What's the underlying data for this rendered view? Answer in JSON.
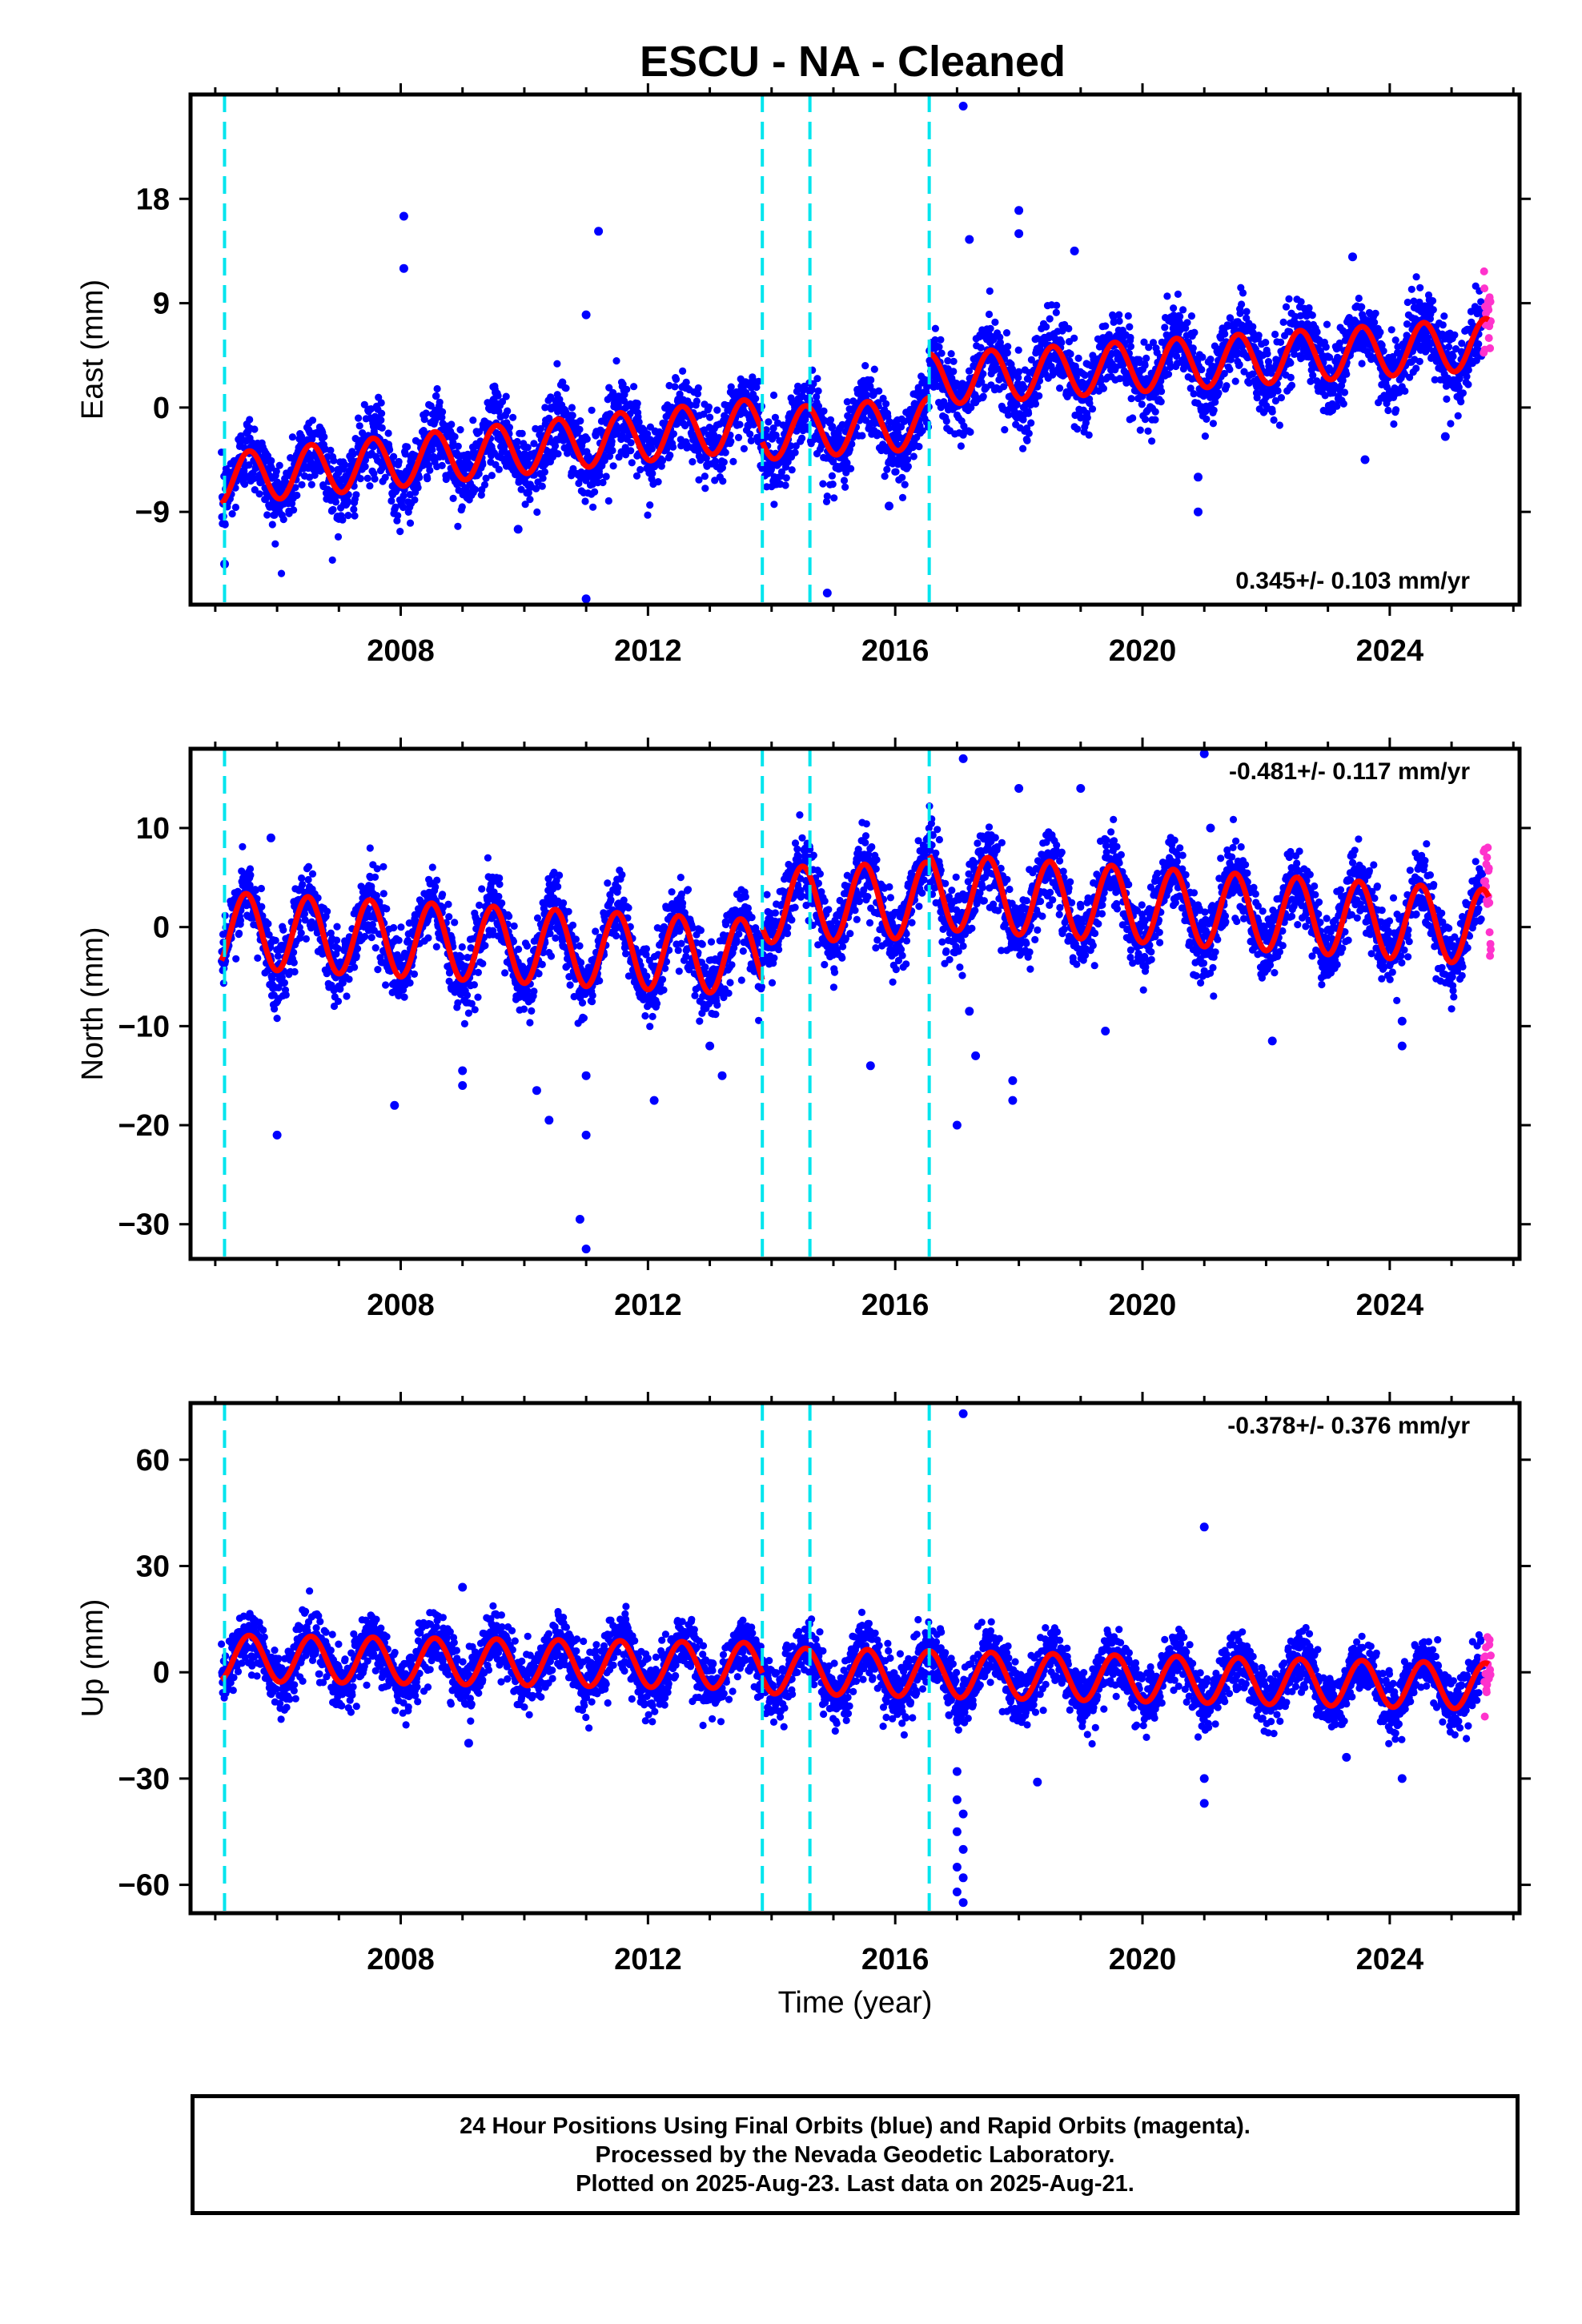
{
  "title": "ESCU  - NA - Cleaned",
  "xlabel": "Time (year)",
  "footer": {
    "line1": "24 Hour Positions Using Final Orbits (blue) and Rapid Orbits (magenta).",
    "line2": "Processed by the Nevada Geodetic Laboratory.",
    "line3": "Plotted on 2025-Aug-23. Last data on 2025-Aug-21."
  },
  "colors": {
    "final": "#0000ff",
    "rapid": "#ff33cc",
    "model": "#ff0000",
    "offsets": "#00e5ee",
    "frame": "#000000"
  },
  "chart_data": [
    {
      "type": "scatter",
      "component": "east",
      "ylabel": "East (mm)",
      "rate_text": "0.345+/- 0.103 mm/yr",
      "rate_position": "bottom-right",
      "xlim": [
        2004.6,
        2026.1
      ],
      "ylim": [
        -17,
        27
      ],
      "xticks": [
        2008,
        2012,
        2016,
        2020,
        2024
      ],
      "yticks": [
        -9,
        0,
        9,
        18
      ],
      "offsets": [
        2005.15,
        2013.85,
        2014.62,
        2016.55
      ],
      "data_span": [
        2005.1,
        2025.6
      ],
      "rapid_span": [
        2025.52,
        2025.64
      ],
      "model": {
        "segments": [
          {
            "from": 2005.1,
            "to": 2013.85,
            "base_at_start": -6.2,
            "rate": 0.55
          },
          {
            "from": 2013.85,
            "to": 2016.55,
            "base_at_start": -2.3,
            "rate": 0.35
          },
          {
            "from": 2016.55,
            "to": 2025.6,
            "base_at_start": 2.4,
            "rate": 0.34
          }
        ],
        "annual_amplitude": 2.2,
        "annual_peak_year_fraction": 0.55
      },
      "scatter_noise": 1.6,
      "outliers": [
        [
          2005.15,
          -13.5
        ],
        [
          2008.05,
          16.5
        ],
        [
          2008.05,
          12.0
        ],
        [
          2009.9,
          -10.5
        ],
        [
          2011.0,
          8.0
        ],
        [
          2011.0,
          -16.5
        ],
        [
          2011.2,
          15.2
        ],
        [
          2014.9,
          -16.0
        ],
        [
          2017.1,
          26.0
        ],
        [
          2017.2,
          14.5
        ],
        [
          2018.0,
          17.0
        ],
        [
          2018.0,
          15.0
        ],
        [
          2018.9,
          13.5
        ],
        [
          2020.9,
          -9.0
        ],
        [
          2020.9,
          -6.0
        ],
        [
          2023.4,
          13.0
        ],
        [
          2023.6,
          -4.5
        ],
        [
          2024.9,
          -2.5
        ],
        [
          2015.9,
          -8.5
        ]
      ]
    },
    {
      "type": "scatter",
      "component": "north",
      "ylabel": "North (mm)",
      "rate_text": "-0.481+/- 0.117 mm/yr",
      "rate_position": "top-right",
      "xlim": [
        2004.6,
        2026.1
      ],
      "ylim": [
        -33.5,
        18
      ],
      "xticks": [
        2008,
        2012,
        2016,
        2020,
        2024
      ],
      "yticks": [
        -30,
        -20,
        -10,
        0,
        10
      ],
      "offsets": [
        2005.15,
        2013.85,
        2014.62,
        2016.55
      ],
      "data_span": [
        2005.1,
        2025.6
      ],
      "rapid_span": [
        2025.52,
        2025.64
      ],
      "model": {
        "segments": [
          {
            "from": 2005.1,
            "to": 2013.85,
            "base_at_start": -0.3,
            "rate": -0.32
          },
          {
            "from": 2013.85,
            "to": 2016.55,
            "base_at_start": 2.2,
            "rate": 0.2
          },
          {
            "from": 2016.55,
            "to": 2025.6,
            "base_at_start": 3.6,
            "rate": -0.4
          }
        ],
        "annual_amplitude": 3.8,
        "annual_peak_year_fraction": 0.5
      },
      "scatter_noise": 1.8,
      "outliers": [
        [
          2005.9,
          9.0
        ],
        [
          2006.0,
          -21.0
        ],
        [
          2007.9,
          -18.0
        ],
        [
          2009.0,
          -16.0
        ],
        [
          2009.0,
          -14.5
        ],
        [
          2010.2,
          -16.5
        ],
        [
          2010.4,
          -19.5
        ],
        [
          2010.9,
          -29.5
        ],
        [
          2011.0,
          -32.5
        ],
        [
          2011.0,
          -21.0
        ],
        [
          2011.0,
          -15.0
        ],
        [
          2012.1,
          -17.5
        ],
        [
          2013.0,
          -12.0
        ],
        [
          2013.2,
          -15.0
        ],
        [
          2015.6,
          -14.0
        ],
        [
          2017.1,
          17.0
        ],
        [
          2017.0,
          -20.0
        ],
        [
          2017.2,
          -8.5
        ],
        [
          2017.3,
          -13.0
        ],
        [
          2017.9,
          -17.5
        ],
        [
          2017.9,
          -15.5
        ],
        [
          2018.0,
          14.0
        ],
        [
          2019.0,
          14.0
        ],
        [
          2019.4,
          -10.5
        ],
        [
          2021.0,
          17.5
        ],
        [
          2021.1,
          10.0
        ],
        [
          2022.1,
          -11.5
        ],
        [
          2024.2,
          -12.0
        ],
        [
          2024.2,
          -9.5
        ]
      ]
    },
    {
      "type": "scatter",
      "component": "up",
      "ylabel": "Up (mm)",
      "rate_text": "-0.378+/- 0.376 mm/yr",
      "rate_position": "top-right",
      "xlim": [
        2004.6,
        2026.1
      ],
      "ylim": [
        -68,
        76
      ],
      "xticks": [
        2008,
        2012,
        2016,
        2020,
        2024
      ],
      "yticks": [
        -60,
        -30,
        0,
        30,
        60
      ],
      "offsets": [
        2005.15,
        2013.85,
        2014.62,
        2016.55
      ],
      "data_span": [
        2005.1,
        2025.6
      ],
      "rapid_span": [
        2025.52,
        2025.64
      ],
      "model": {
        "segments": [
          {
            "from": 2005.1,
            "to": 2013.85,
            "base_at_start": 4.0,
            "rate": -0.25
          },
          {
            "from": 2013.85,
            "to": 2016.55,
            "base_at_start": 0.5,
            "rate": -0.35
          },
          {
            "from": 2016.55,
            "to": 2025.6,
            "base_at_start": -0.5,
            "rate": -0.38
          }
        ],
        "annual_amplitude": 6.5,
        "annual_peak_year_fraction": 0.55
      },
      "scatter_noise": 4.2,
      "outliers": [
        [
          2009.0,
          24.0
        ],
        [
          2009.1,
          -20.0
        ],
        [
          2017.1,
          73.0
        ],
        [
          2017.0,
          -28.0
        ],
        [
          2017.0,
          -36.0
        ],
        [
          2017.1,
          -40.0
        ],
        [
          2017.0,
          -45.0
        ],
        [
          2017.1,
          -50.0
        ],
        [
          2017.0,
          -55.0
        ],
        [
          2017.1,
          -58.0
        ],
        [
          2017.0,
          -62.0
        ],
        [
          2017.1,
          -65.0
        ],
        [
          2018.3,
          -31.0
        ],
        [
          2021.0,
          41.0
        ],
        [
          2021.0,
          -30.0
        ],
        [
          2021.0,
          -37.0
        ],
        [
          2023.3,
          -24.0
        ],
        [
          2024.2,
          -30.0
        ]
      ]
    }
  ]
}
